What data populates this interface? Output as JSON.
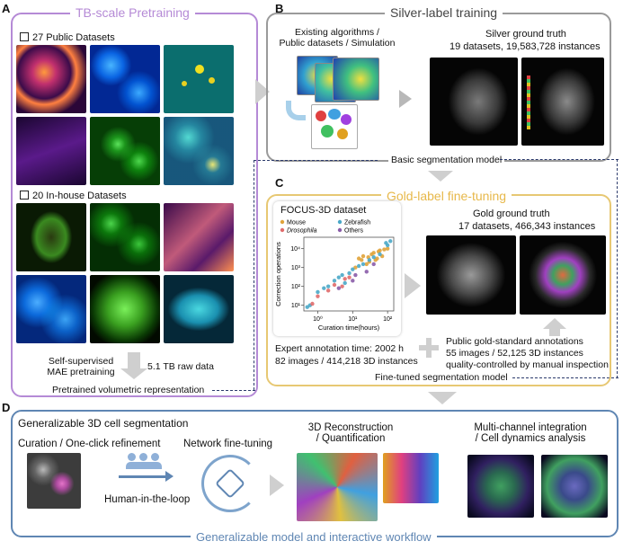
{
  "panel_a": {
    "letter": "A",
    "title": "TB-scale Pretraining",
    "public_header": "27 Public Datasets",
    "inhouse_header": "20 In-house Datasets",
    "mae_line1": "Self-supervised",
    "mae_line2": "MAE pretraining",
    "raw_data": "5.1 TB raw data",
    "representation": "Pretrained volumetric representation"
  },
  "panel_b": {
    "letter": "B",
    "title": "Silver-label training",
    "sources_line1": "Existing algorithms /",
    "sources_line2": "Public datasets / Simulation",
    "gt_title": "Silver ground truth",
    "gt_stats": "19 datasets, 19,583,728 instances",
    "model": "Basic segmentation model"
  },
  "panel_c": {
    "letter": "C",
    "title": "Gold-label fine-tuning",
    "gt_title": "Gold ground truth",
    "gt_stats": "17 datasets, 466,343 instances",
    "expert_time": "Expert annotation time: 2002 h",
    "expert_counts": "82 images / 414,218 3D instances",
    "public_line1": "Public gold-standard annotations",
    "public_line2": "55 images / 52,125 3D instances",
    "public_line3": "quality-controlled by manual inspection",
    "model": "Fine-tuned segmentation model"
  },
  "chart_data": {
    "type": "scatter",
    "title": "FOCUS-3D dataset",
    "xlabel": "Curation time(hours)",
    "ylabel": "Correction operations",
    "x_scale": "log",
    "y_scale": "log",
    "xlim": [
      0.4,
      150
    ],
    "ylim": [
      5,
      40000
    ],
    "x_ticks": [
      "10⁰",
      "10¹",
      "10²"
    ],
    "y_ticks": [
      "10¹",
      "10²",
      "10³",
      "10⁴"
    ],
    "legend_placement": "top-left",
    "series": [
      {
        "name": "Mouse",
        "color": "#e0a33a",
        "points": [
          [
            15,
            3000
          ],
          [
            20,
            4000
          ],
          [
            30,
            2000
          ],
          [
            40,
            6000
          ],
          [
            50,
            3000
          ],
          [
            60,
            8000
          ],
          [
            25,
            1500
          ],
          [
            80,
            9000
          ],
          [
            35,
            5000
          ],
          [
            45,
            2500
          ],
          [
            70,
            4000
          ],
          [
            100,
            10000
          ],
          [
            12,
            1000
          ],
          [
            18,
            2500
          ],
          [
            55,
            7000
          ],
          [
            28,
            3500
          ]
        ]
      },
      {
        "name": "Zebrafish",
        "color": "#4aa8c8",
        "points": [
          [
            0.5,
            8
          ],
          [
            0.6,
            10
          ],
          [
            1,
            50
          ],
          [
            2,
            100
          ],
          [
            3,
            200
          ],
          [
            5,
            400
          ],
          [
            8,
            500
          ],
          [
            10,
            800
          ],
          [
            20,
            1500
          ],
          [
            4,
            300
          ],
          [
            6,
            150
          ],
          [
            15,
            1200
          ],
          [
            30,
            2500
          ],
          [
            60,
            5000
          ],
          [
            1.5,
            80
          ],
          [
            40,
            3500
          ],
          [
            100,
            15000
          ],
          [
            90,
            20000
          ],
          [
            120,
            25000
          ]
        ]
      },
      {
        "name": "Drosophila",
        "color": "#e06c6c",
        "points": [
          [
            1,
            30
          ],
          [
            2,
            60
          ],
          [
            5,
            100
          ],
          [
            8,
            300
          ],
          [
            3,
            120
          ],
          [
            6,
            250
          ],
          [
            0.7,
            12
          ]
        ]
      },
      {
        "name": "Others",
        "color": "#8a5ca8",
        "points": [
          [
            4,
            80
          ],
          [
            10,
            200
          ],
          [
            25,
            600
          ],
          [
            12,
            400
          ],
          [
            40,
            1500
          ]
        ]
      }
    ]
  },
  "panel_d": {
    "letter": "D",
    "title": "Generalizable 3D cell segmentation",
    "curation": "Curation / One-click refinement",
    "finetune": "Network fine-tuning",
    "hitl": "Human-in-the-loop",
    "recon_line1": "3D Reconstruction",
    "recon_line2": "/ Quantification",
    "multi_line1": "Multi-channel integration",
    "multi_line2": "/ Cell dynamics analysis",
    "footer": "Generalizable model and interactive workflow"
  },
  "colors": {
    "panel_a_border": "#b58ad6",
    "panel_b_border": "#9a9a9a",
    "panel_c_border": "#e7c873",
    "panel_d_border": "#5f86b3",
    "arrow_gray": "#cfcfcf",
    "dashed_line": "#2b3a6b"
  }
}
